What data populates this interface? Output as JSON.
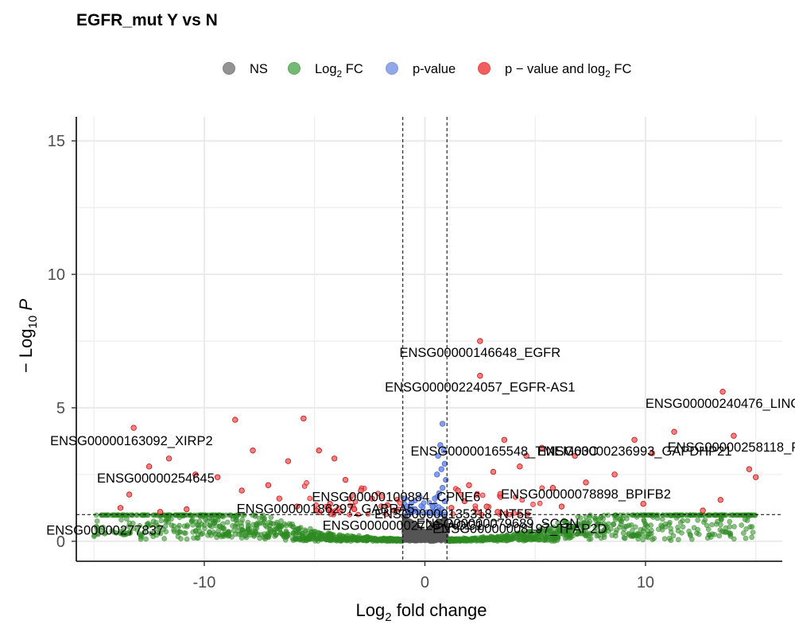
{
  "chart_data": {
    "type": "scatter",
    "title": "EGFR_mut Y vs N",
    "xlabel_main": "Log",
    "xlabel_sub": "2",
    "xlabel_rest": " fold change",
    "ylabel_prefix": "− Log",
    "ylabel_sub": "10",
    "ylabel_var": "P",
    "xlim": [
      -15.8,
      16.2
    ],
    "ylim": [
      -0.75,
      15.9
    ],
    "xticks": [
      -10,
      0,
      10
    ],
    "yticks": [
      0,
      5,
      10,
      15
    ],
    "fc_cutoff": [
      -1,
      1
    ],
    "p_cutoff": 1,
    "grid": true,
    "legend_position": "top",
    "legend": [
      {
        "key": "NS",
        "text": "NS",
        "color": "#808080"
      },
      {
        "key": "FC",
        "text": "Log",
        "sub": "2",
        "tail": " FC",
        "color": "#5cad5c"
      },
      {
        "key": "P",
        "text": "p-value",
        "color": "#7f99e3"
      },
      {
        "key": "PFC",
        "text": "p − value and log",
        "sub": "2",
        "tail": " FC",
        "color": "#ee4444"
      }
    ],
    "colors": {
      "NS": "#555555",
      "FC": "#2e8b22",
      "P": "#4169e1",
      "PFC": "#ff0000"
    },
    "labeled_points": [
      {
        "label": "ENSG00000146648_EGFR",
        "x": 2.5,
        "y": 7.5
      },
      {
        "label": "ENSG00000224057_EGFR-AS1",
        "x": 2.5,
        "y": 6.2
      },
      {
        "label": "ENSG00000240476_LINC",
        "x": 13.5,
        "y": 5.6
      },
      {
        "label": "ENSG00000163092_XIRP2",
        "x": -13.3,
        "y": 4.2
      },
      {
        "label": "ENSG00000165548_TMEM63C",
        "x": 3.6,
        "y": 3.8
      },
      {
        "label": "ENSG00000258118_P",
        "x": 14.0,
        "y": 3.95
      },
      {
        "label": "ENSG00000236993_GAPDHP21",
        "x": 9.5,
        "y": 3.8
      },
      {
        "label": "ENSG00000254645",
        "x": -12.2,
        "y": 2.8
      },
      {
        "label": "ENSG00000100884_CPNE6",
        "x": -1.3,
        "y": 2.1
      },
      {
        "label": "ENSG00000078898_BPIFB2",
        "x": 7.3,
        "y": 2.2
      },
      {
        "label": "ENSG00000186297_GABRA5",
        "x": -4.5,
        "y": 1.65
      },
      {
        "label": "ENSG00000135318_NT5E",
        "x": 1.3,
        "y": 1.45
      },
      {
        "label": "ENSG00000079689_SCGN",
        "x": 3.3,
        "y": 1.1
      },
      {
        "label": "ENSG00000002726_AOC1",
        "x": -1.0,
        "y": 1.02
      },
      {
        "label": "ENSG00000277837",
        "x": -14.5,
        "y": 0.85
      },
      {
        "label": "ENSG00000008197_TFAP2D",
        "x": 4.3,
        "y": 0.9
      }
    ],
    "highlighted_points": [
      {
        "x": -13.2,
        "y": 4.25,
        "group": "PFC"
      },
      {
        "x": -8.6,
        "y": 4.55,
        "group": "PFC"
      },
      {
        "x": -5.5,
        "y": 4.6,
        "group": "PFC"
      },
      {
        "x": -11.6,
        "y": 3.1,
        "group": "PFC"
      },
      {
        "x": -7.8,
        "y": 3.4,
        "group": "PFC"
      },
      {
        "x": -6.2,
        "y": 3.0,
        "group": "PFC"
      },
      {
        "x": -4.8,
        "y": 3.4,
        "group": "PFC"
      },
      {
        "x": -4.1,
        "y": 3.1,
        "group": "PFC"
      },
      {
        "x": -12.5,
        "y": 2.8,
        "group": "PFC"
      },
      {
        "x": -10.4,
        "y": 2.5,
        "group": "PFC"
      },
      {
        "x": -9.4,
        "y": 2.4,
        "group": "PFC"
      },
      {
        "x": -13.4,
        "y": 1.75,
        "group": "PFC"
      },
      {
        "x": -8.3,
        "y": 1.9,
        "group": "PFC"
      },
      {
        "x": -7.1,
        "y": 2.1,
        "group": "PFC"
      },
      {
        "x": -6.6,
        "y": 1.6,
        "group": "PFC"
      },
      {
        "x": -3.6,
        "y": 2.3,
        "group": "PFC"
      },
      {
        "x": -2.9,
        "y": 1.9,
        "group": "PFC"
      },
      {
        "x": -2.4,
        "y": 1.6,
        "group": "PFC"
      },
      {
        "x": -13.8,
        "y": 1.25,
        "group": "PFC"
      },
      {
        "x": -12.0,
        "y": 1.1,
        "group": "PFC"
      },
      {
        "x": -10.8,
        "y": 1.2,
        "group": "PFC"
      },
      {
        "x": -5.8,
        "y": 1.3,
        "group": "PFC"
      },
      {
        "x": -4.3,
        "y": 1.4,
        "group": "PFC"
      },
      {
        "x": -3.2,
        "y": 1.2,
        "group": "PFC"
      },
      {
        "x": -1.7,
        "y": 1.35,
        "group": "PFC"
      },
      {
        "x": -1.4,
        "y": 1.15,
        "group": "PFC"
      },
      {
        "x": 2.5,
        "y": 7.5,
        "group": "PFC"
      },
      {
        "x": 2.5,
        "y": 6.2,
        "group": "PFC"
      },
      {
        "x": 13.5,
        "y": 5.6,
        "group": "PFC"
      },
      {
        "x": 11.3,
        "y": 4.1,
        "group": "PFC"
      },
      {
        "x": 14.0,
        "y": 3.95,
        "group": "PFC"
      },
      {
        "x": 9.5,
        "y": 3.8,
        "group": "PFC"
      },
      {
        "x": 3.6,
        "y": 3.8,
        "group": "PFC"
      },
      {
        "x": 5.3,
        "y": 3.5,
        "group": "PFC"
      },
      {
        "x": 10.3,
        "y": 3.3,
        "group": "PFC"
      },
      {
        "x": 4.6,
        "y": 3.2,
        "group": "PFC"
      },
      {
        "x": 6.8,
        "y": 3.2,
        "group": "PFC"
      },
      {
        "x": 14.7,
        "y": 2.7,
        "group": "PFC"
      },
      {
        "x": 15.0,
        "y": 2.4,
        "group": "PFC"
      },
      {
        "x": 8.6,
        "y": 2.5,
        "group": "PFC"
      },
      {
        "x": 4.3,
        "y": 2.8,
        "group": "PFC"
      },
      {
        "x": 3.1,
        "y": 2.6,
        "group": "PFC"
      },
      {
        "x": 7.3,
        "y": 2.2,
        "group": "PFC"
      },
      {
        "x": 2.0,
        "y": 2.1,
        "group": "PFC"
      },
      {
        "x": 5.8,
        "y": 2.0,
        "group": "PFC"
      },
      {
        "x": 1.5,
        "y": 1.9,
        "group": "PFC"
      },
      {
        "x": 13.4,
        "y": 1.55,
        "group": "PFC"
      },
      {
        "x": 9.9,
        "y": 1.4,
        "group": "PFC"
      },
      {
        "x": 3.3,
        "y": 1.1,
        "group": "PFC"
      },
      {
        "x": 6.2,
        "y": 1.3,
        "group": "PFC"
      },
      {
        "x": 12.6,
        "y": 1.15,
        "group": "PFC"
      },
      {
        "x": 1.8,
        "y": 1.5,
        "group": "PFC"
      },
      {
        "x": 2.8,
        "y": 1.3,
        "group": "PFC"
      },
      {
        "x": 1.2,
        "y": 1.25,
        "group": "PFC"
      },
      {
        "x": 0.8,
        "y": 4.4,
        "group": "P"
      },
      {
        "x": 0.7,
        "y": 3.6,
        "group": "P"
      },
      {
        "x": 0.85,
        "y": 3.4,
        "group": "P"
      },
      {
        "x": 0.6,
        "y": 3.2,
        "group": "P"
      },
      {
        "x": 0.9,
        "y": 2.9,
        "group": "P"
      },
      {
        "x": 0.75,
        "y": 2.7,
        "group": "P"
      },
      {
        "x": 0.55,
        "y": 2.5,
        "group": "P"
      },
      {
        "x": 0.95,
        "y": 2.3,
        "group": "P"
      },
      {
        "x": 0.8,
        "y": 2.0,
        "group": "P"
      },
      {
        "x": 0.65,
        "y": 1.8,
        "group": "P"
      },
      {
        "x": 0.45,
        "y": 1.6,
        "group": "P"
      },
      {
        "x": 0.9,
        "y": 1.5,
        "group": "P"
      },
      {
        "x": 0.35,
        "y": 1.3,
        "group": "P"
      },
      {
        "x": 0.6,
        "y": 1.15,
        "group": "P"
      },
      {
        "x": -0.6,
        "y": 1.45,
        "group": "P"
      },
      {
        "x": -0.8,
        "y": 1.3,
        "group": "P"
      },
      {
        "x": -0.45,
        "y": 1.2,
        "group": "P"
      },
      {
        "x": -0.9,
        "y": 1.6,
        "group": "P"
      },
      {
        "x": -0.3,
        "y": 1.1,
        "group": "P"
      },
      {
        "x": -0.7,
        "y": 1.05,
        "group": "P"
      }
    ]
  }
}
